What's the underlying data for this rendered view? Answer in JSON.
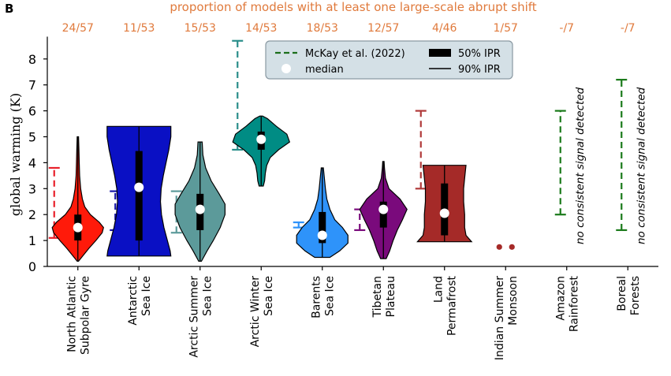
{
  "panel_label": "B",
  "chart_data": {
    "type": "violin",
    "title": "proportion of models with at least one large-scale abrupt shift",
    "ylabel": "global warming (K)",
    "ylim": [
      0,
      8.8
    ],
    "yticks": [
      0,
      1,
      2,
      3,
      4,
      5,
      6,
      7,
      8
    ],
    "grid": false,
    "legend": {
      "placement": "top-center",
      "entries": [
        {
          "label": "McKay et al. (2022)",
          "kind": "dashed-range",
          "color": "#1a6e1a"
        },
        {
          "label": "50% IPR",
          "kind": "thick-bar",
          "color": "#000000"
        },
        {
          "label": "median",
          "kind": "dot",
          "color": "#ffffff"
        },
        {
          "label": "90% IPR",
          "kind": "thin-line",
          "color": "#000000"
        }
      ],
      "background": "#d4e0e6"
    },
    "no_signal_text": "no consistent signal detected",
    "categories": [
      {
        "lines": [
          "North Atlantic",
          "Subpolar Gyre"
        ],
        "proportion": "24/57",
        "color": "#ff1a0a",
        "mckay_color": "#e8202a",
        "mckay": [
          1.1,
          3.8
        ],
        "violin": [
          [
            0.2,
            0.02
          ],
          [
            0.4,
            0.14
          ],
          [
            0.7,
            0.32
          ],
          [
            1.0,
            0.52
          ],
          [
            1.3,
            0.7
          ],
          [
            1.5,
            0.74
          ],
          [
            1.7,
            0.62
          ],
          [
            2.0,
            0.36
          ],
          [
            2.3,
            0.2
          ],
          [
            2.6,
            0.13
          ],
          [
            3.0,
            0.08
          ],
          [
            3.5,
            0.05
          ],
          [
            4.0,
            0.04
          ],
          [
            4.5,
            0.03
          ],
          [
            5.0,
            0.02
          ]
        ],
        "iqr": [
          1.0,
          2.0
        ],
        "ipr90": [
          0.2,
          5.0
        ],
        "median": 1.5,
        "no_signal": false
      },
      {
        "lines": [
          "Antarctic",
          "Sea Ice"
        ],
        "proportion": "11/53",
        "color": "#0a10c4",
        "mckay_color": "#1616a8",
        "mckay": [
          1.4,
          2.9
        ],
        "violin": [
          [
            0.4,
            0.92
          ],
          [
            0.6,
            0.9
          ],
          [
            1.0,
            0.82
          ],
          [
            1.5,
            0.72
          ],
          [
            2.0,
            0.65
          ],
          [
            2.5,
            0.62
          ],
          [
            3.0,
            0.64
          ],
          [
            3.5,
            0.7
          ],
          [
            4.0,
            0.78
          ],
          [
            4.5,
            0.86
          ],
          [
            5.0,
            0.92
          ],
          [
            5.4,
            0.92
          ]
        ],
        "iqr": [
          1.0,
          4.45
        ],
        "ipr90": [
          0.4,
          5.4
        ],
        "median": 3.05,
        "no_signal": false
      },
      {
        "lines": [
          "Arctic Summer",
          "Sea Ice"
        ],
        "proportion": "15/53",
        "color": "#5c9a9a",
        "mckay_color": "#5c9a9a",
        "mckay": [
          1.3,
          2.9
        ],
        "violin": [
          [
            0.2,
            0.04
          ],
          [
            0.6,
            0.2
          ],
          [
            1.0,
            0.38
          ],
          [
            1.5,
            0.58
          ],
          [
            2.0,
            0.72
          ],
          [
            2.4,
            0.72
          ],
          [
            2.8,
            0.55
          ],
          [
            3.3,
            0.32
          ],
          [
            3.8,
            0.16
          ],
          [
            4.3,
            0.08
          ],
          [
            4.8,
            0.06
          ]
        ],
        "iqr": [
          1.4,
          2.8
        ],
        "ipr90": [
          0.2,
          4.8
        ],
        "median": 2.2,
        "no_signal": false
      },
      {
        "lines": [
          "Arctic Winter",
          "Sea Ice"
        ],
        "proportion": "14/53",
        "color": "#008c84",
        "mckay_color": "#2a8e8a",
        "mckay": [
          4.5,
          8.7
        ],
        "violin": [
          [
            3.1,
            0.06
          ],
          [
            3.3,
            0.1
          ],
          [
            3.6,
            0.12
          ],
          [
            3.9,
            0.16
          ],
          [
            4.2,
            0.26
          ],
          [
            4.5,
            0.5
          ],
          [
            4.8,
            0.82
          ],
          [
            5.1,
            0.74
          ],
          [
            5.4,
            0.44
          ],
          [
            5.7,
            0.18
          ],
          [
            5.8,
            0.04
          ]
        ],
        "iqr": [
          4.5,
          5.2
        ],
        "ipr90": [
          3.1,
          5.8
        ],
        "median": 4.9,
        "no_signal": false
      },
      {
        "lines": [
          "Barents",
          "Sea Ice"
        ],
        "proportion": "18/53",
        "color": "#2e93fa",
        "mckay_color": "#2e93fa",
        "mckay": [
          1.5,
          1.7
        ],
        "violin": [
          [
            0.35,
            0.22
          ],
          [
            0.6,
            0.5
          ],
          [
            0.9,
            0.74
          ],
          [
            1.2,
            0.74
          ],
          [
            1.5,
            0.58
          ],
          [
            1.8,
            0.36
          ],
          [
            2.2,
            0.22
          ],
          [
            2.6,
            0.13
          ],
          [
            3.0,
            0.09
          ],
          [
            3.4,
            0.06
          ],
          [
            3.8,
            0.03
          ]
        ],
        "iqr": [
          0.9,
          2.1
        ],
        "ipr90": [
          0.35,
          3.8
        ],
        "median": 1.2,
        "no_signal": false
      },
      {
        "lines": [
          "Tibetan",
          "Plateau"
        ],
        "proportion": "12/57",
        "color": "#7a0a7c",
        "mckay_color": "#7a0a7c",
        "mckay": [
          1.4,
          2.2
        ],
        "violin": [
          [
            0.3,
            0.08
          ],
          [
            0.6,
            0.18
          ],
          [
            1.0,
            0.28
          ],
          [
            1.4,
            0.4
          ],
          [
            1.8,
            0.55
          ],
          [
            2.2,
            0.68
          ],
          [
            2.6,
            0.48
          ],
          [
            3.0,
            0.16
          ],
          [
            3.4,
            0.06
          ],
          [
            3.8,
            0.03
          ],
          [
            4.05,
            0.02
          ]
        ],
        "iqr": [
          1.5,
          2.5
        ],
        "ipr90": [
          0.3,
          4.05
        ],
        "median": 2.2,
        "no_signal": false
      },
      {
        "lines": [
          "Land",
          "Permafrost"
        ],
        "proportion": "4/46",
        "color": "#a52a28",
        "mckay_color": "#b03a3a",
        "mckay": [
          3.0,
          6.0
        ],
        "violin": [
          [
            0.95,
            0.78
          ],
          [
            1.2,
            0.62
          ],
          [
            1.5,
            0.58
          ],
          [
            2.0,
            0.58
          ],
          [
            2.5,
            0.55
          ],
          [
            3.0,
            0.55
          ],
          [
            3.4,
            0.58
          ],
          [
            3.9,
            0.62
          ]
        ],
        "iqr": [
          1.2,
          3.2
        ],
        "ipr90": [
          0.95,
          3.9
        ],
        "median": 2.05,
        "no_signal": false
      },
      {
        "lines": [
          "Indian Summer",
          "Monsoon"
        ],
        "proportion": "1/57",
        "color": "#a52a28",
        "mckay_color": "#a52a28",
        "mckay": null,
        "points": [
          0.75,
          0.75
        ],
        "no_signal": false
      },
      {
        "lines": [
          "Amazon",
          "Rainforest"
        ],
        "proportion": "-/7",
        "color": "#1a7a1a",
        "mckay_color": "#1a7a1a",
        "mckay": [
          2.0,
          6.0
        ],
        "no_signal": true
      },
      {
        "lines": [
          "Boreal",
          "Forests"
        ],
        "proportion": "-/7",
        "color": "#1a7a1a",
        "mckay_color": "#1a7a1a",
        "mckay": [
          1.4,
          7.2
        ],
        "no_signal": true
      }
    ]
  }
}
